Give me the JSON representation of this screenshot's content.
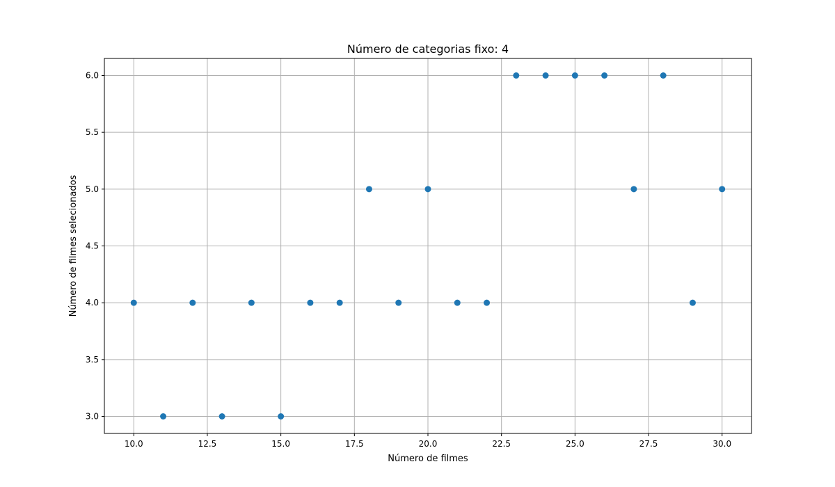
{
  "chart_data": {
    "type": "scatter",
    "title": "Número de categorias fixo: 4",
    "xlabel": "Número de filmes",
    "ylabel": "Número de filmes selecionados",
    "xlim": [
      9.0,
      31.0
    ],
    "ylim": [
      2.85,
      6.15
    ],
    "xticks": [
      10.0,
      12.5,
      15.0,
      17.5,
      20.0,
      22.5,
      25.0,
      27.5,
      30.0
    ],
    "xtick_labels": [
      "10.0",
      "12.5",
      "15.0",
      "17.5",
      "20.0",
      "22.5",
      "25.0",
      "27.5",
      "30.0"
    ],
    "yticks": [
      3.0,
      3.5,
      4.0,
      4.5,
      5.0,
      5.5,
      6.0
    ],
    "ytick_labels": [
      "3.0",
      "3.5",
      "4.0",
      "4.5",
      "5.0",
      "5.5",
      "6.0"
    ],
    "grid": true,
    "marker_color": "#1f77b4",
    "points": [
      {
        "x": 10,
        "y": 4
      },
      {
        "x": 11,
        "y": 3
      },
      {
        "x": 12,
        "y": 4
      },
      {
        "x": 13,
        "y": 3
      },
      {
        "x": 14,
        "y": 4
      },
      {
        "x": 15,
        "y": 3
      },
      {
        "x": 16,
        "y": 4
      },
      {
        "x": 17,
        "y": 4
      },
      {
        "x": 18,
        "y": 5
      },
      {
        "x": 19,
        "y": 4
      },
      {
        "x": 20,
        "y": 5
      },
      {
        "x": 21,
        "y": 4
      },
      {
        "x": 22,
        "y": 4
      },
      {
        "x": 23,
        "y": 6
      },
      {
        "x": 24,
        "y": 6
      },
      {
        "x": 25,
        "y": 6
      },
      {
        "x": 26,
        "y": 6
      },
      {
        "x": 27,
        "y": 5
      },
      {
        "x": 28,
        "y": 6
      },
      {
        "x": 29,
        "y": 4
      },
      {
        "x": 30,
        "y": 5
      }
    ]
  }
}
